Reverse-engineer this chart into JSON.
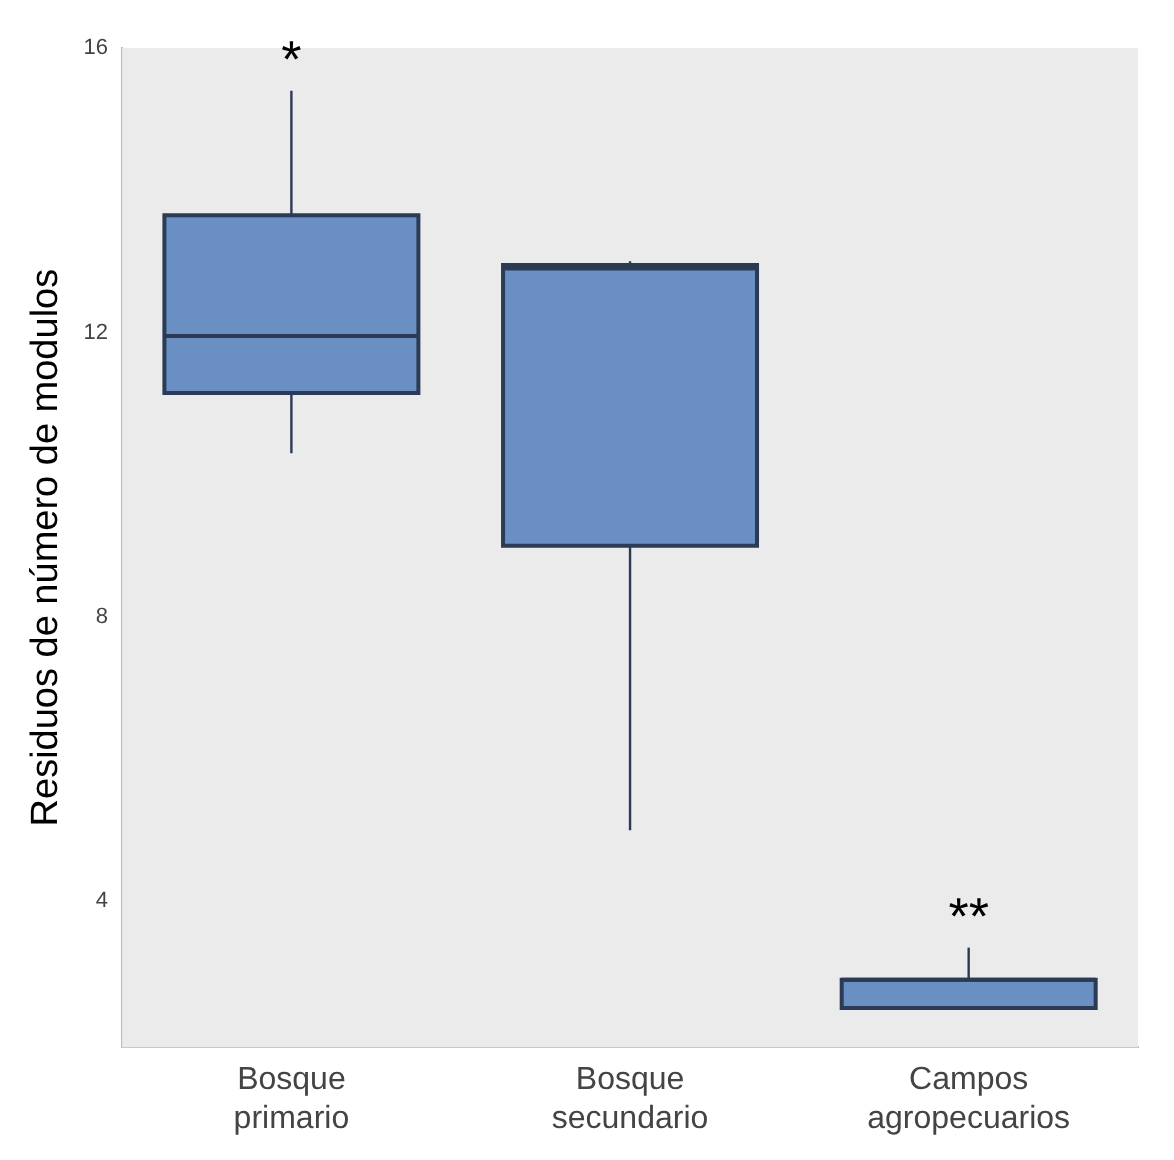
{
  "chart_data": {
    "type": "box",
    "ylabel": "Residuos de número de modulos",
    "categories": [
      "Bosque primario",
      "Bosque secundario",
      "Campos agropecuarios"
    ],
    "boxes": [
      {
        "low": 10.3,
        "q1": 11.15,
        "median": 11.95,
        "q3": 13.65,
        "high": 15.4
      },
      {
        "low": 5.0,
        "q1": 9.0,
        "median": 12.9,
        "q3": 12.95,
        "high": 13.0
      },
      {
        "low": 2.5,
        "q1": 2.5,
        "median": 2.9,
        "q3": 2.9,
        "high": 3.35
      }
    ],
    "color": "#6a8fc2",
    "ylim": [
      1.95,
      16
    ],
    "yticks": [
      4,
      8,
      12,
      16
    ],
    "grid": false,
    "legend": false,
    "annotations": [
      "*",
      "**"
    ]
  }
}
